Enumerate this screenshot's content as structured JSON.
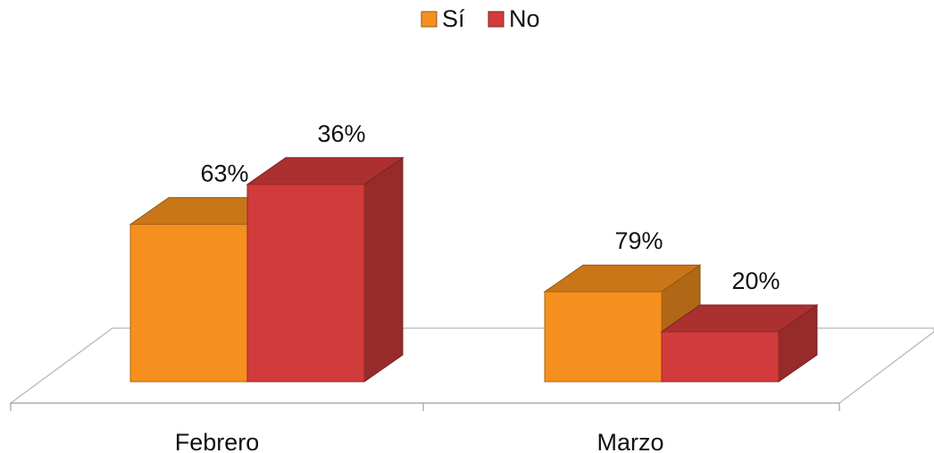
{
  "chart_data": {
    "type": "bar",
    "categories": [
      "Febrero",
      "Marzo"
    ],
    "series": [
      {
        "name": "Sí",
        "values": [
          63,
          36
        ],
        "color": "#f5901e"
      },
      {
        "name": "No",
        "values": [
          79,
          20
        ],
        "color": "#d23b3b"
      }
    ],
    "data_labels": [
      [
        "63%",
        "36%"
      ],
      [
        "79%",
        "20%"
      ]
    ],
    "unit": "%",
    "ylim": [
      0,
      100
    ],
    "legend": "top-center",
    "grid": false,
    "style": "3d-column"
  }
}
